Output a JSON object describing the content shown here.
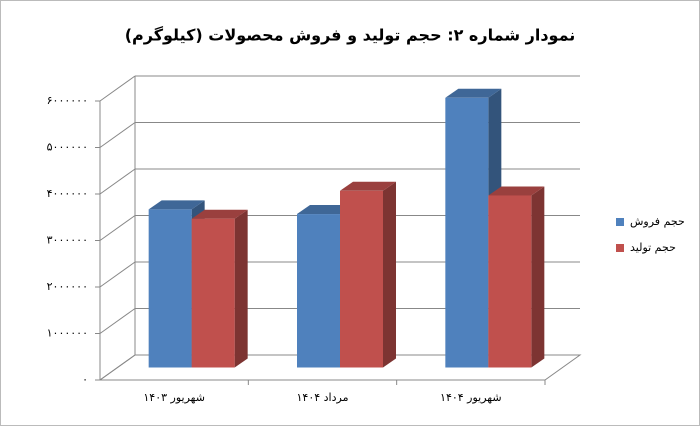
{
  "chart_data": {
    "type": "bar3d",
    "title": "نمودار شماره ۲: حجم تولید و فروش محصولات (کیلوگرم)",
    "categories": [
      "شهریور ۱۴۰۳",
      "مرداد ۱۴۰۴",
      "شهریور ۱۴۰۴"
    ],
    "series": [
      {
        "name": "حجم فروش",
        "color": "#4f81bd",
        "values": [
          3400000,
          3300000,
          5800000
        ]
      },
      {
        "name": "حجم تولید",
        "color": "#c0504d",
        "values": [
          3200000,
          3800000,
          3700000
        ]
      }
    ],
    "ylim": [
      0,
      6000000
    ],
    "yticks": [
      {
        "value": 0,
        "label": "۰"
      },
      {
        "value": 1000000,
        "label": "۱۰۰۰۰۰۰"
      },
      {
        "value": 2000000,
        "label": "۲۰۰۰۰۰۰"
      },
      {
        "value": 3000000,
        "label": "۳۰۰۰۰۰۰"
      },
      {
        "value": 4000000,
        "label": "۴۰۰۰۰۰۰"
      },
      {
        "value": 5000000,
        "label": "۵۰۰۰۰۰۰"
      },
      {
        "value": 6000000,
        "label": "۶۰۰۰۰۰۰"
      }
    ],
    "grid": true,
    "legend": "right"
  }
}
